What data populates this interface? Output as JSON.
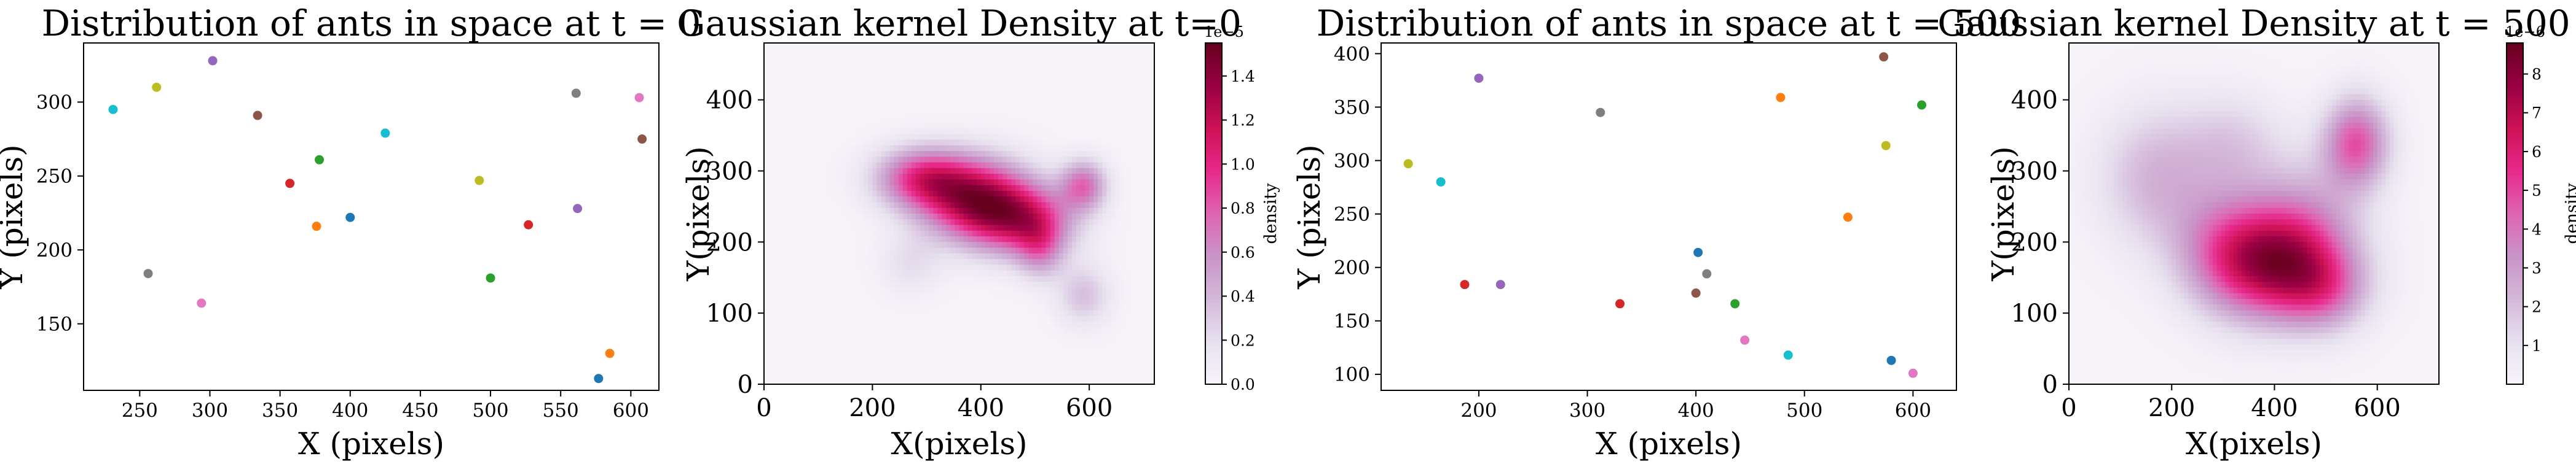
{
  "colors": {
    "palette": [
      "#1f77b4",
      "#ff7f0e",
      "#2ca02c",
      "#d62728",
      "#9467bd",
      "#8c564b",
      "#e377c2",
      "#7f7f7f",
      "#bcbd22",
      "#17becf"
    ],
    "cmap": [
      "#f7f4f9",
      "#e7e1ef",
      "#d4b9da",
      "#c994c7",
      "#df65b0",
      "#e7298a",
      "#ce1256",
      "#980043",
      "#67001f"
    ]
  },
  "chart_data": [
    {
      "type": "scatter",
      "title": "Distribution of ants in space at t = 0",
      "xlabel": "X (pixels)",
      "ylabel": "Y (pixels)",
      "xlim": [
        210,
        620
      ],
      "ylim": [
        105,
        340
      ],
      "xticks": [
        "250",
        "300",
        "350",
        "400",
        "450",
        "500",
        "550",
        "600"
      ],
      "yticks": [
        "150",
        "200",
        "250",
        "300"
      ],
      "points": [
        {
          "x": 231,
          "y": 295,
          "color": "#17becf"
        },
        {
          "x": 262,
          "y": 310,
          "color": "#bcbd22"
        },
        {
          "x": 302,
          "y": 328,
          "color": "#9467bd"
        },
        {
          "x": 334,
          "y": 291,
          "color": "#8c564b"
        },
        {
          "x": 357,
          "y": 245,
          "color": "#d62728"
        },
        {
          "x": 378,
          "y": 261,
          "color": "#2ca02c"
        },
        {
          "x": 376,
          "y": 216,
          "color": "#ff7f0e"
        },
        {
          "x": 400,
          "y": 222,
          "color": "#1f77b4"
        },
        {
          "x": 425,
          "y": 279,
          "color": "#17becf"
        },
        {
          "x": 256,
          "y": 184,
          "color": "#7f7f7f"
        },
        {
          "x": 294,
          "y": 164,
          "color": "#e377c2"
        },
        {
          "x": 492,
          "y": 247,
          "color": "#bcbd22"
        },
        {
          "x": 500,
          "y": 181,
          "color": "#2ca02c"
        },
        {
          "x": 527,
          "y": 217,
          "color": "#d62728"
        },
        {
          "x": 561,
          "y": 306,
          "color": "#7f7f7f"
        },
        {
          "x": 562,
          "y": 228,
          "color": "#9467bd"
        },
        {
          "x": 606,
          "y": 303,
          "color": "#e377c2"
        },
        {
          "x": 608,
          "y": 275,
          "color": "#8c564b"
        },
        {
          "x": 585,
          "y": 130,
          "color": "#ff7f0e"
        },
        {
          "x": 577,
          "y": 113,
          "color": "#1f77b4"
        }
      ]
    },
    {
      "type": "heatmap",
      "title": "Gaussian kernel Density at t=0",
      "xlabel": "X(pixels)",
      "ylabel": "Y(pixels)",
      "xlim": [
        0,
        720
      ],
      "ylim": [
        0,
        480
      ],
      "xticks": [
        "0",
        "200",
        "400",
        "600"
      ],
      "yticks": [
        "0",
        "100",
        "200",
        "300",
        "400"
      ],
      "colorbar": {
        "label": "density",
        "offset_text": "1e−5",
        "max": 1.55,
        "ticks": [
          "0.0",
          "0.2",
          "0.4",
          "0.6",
          "0.8",
          "1.0",
          "1.2",
          "1.4"
        ]
      },
      "peaks": [
        {
          "x": 390,
          "y": 260,
          "sx": 70,
          "sy": 40,
          "w": 1.2
        },
        {
          "x": 290,
          "y": 290,
          "sx": 60,
          "sy": 30,
          "w": 0.85
        },
        {
          "x": 480,
          "y": 230,
          "sx": 65,
          "sy": 35,
          "w": 0.9
        },
        {
          "x": 590,
          "y": 280,
          "sx": 30,
          "sy": 25,
          "w": 0.7
        },
        {
          "x": 510,
          "y": 190,
          "sx": 30,
          "sy": 30,
          "w": 0.45
        },
        {
          "x": 590,
          "y": 125,
          "sx": 35,
          "sy": 30,
          "w": 0.35
        },
        {
          "x": 270,
          "y": 170,
          "sx": 40,
          "sy": 30,
          "w": 0.2
        }
      ]
    },
    {
      "type": "scatter",
      "title": "Distribution of ants in space at t = 500",
      "xlabel": "X (pixels)",
      "ylabel": "Y (pixels)",
      "xlim": [
        110,
        640
      ],
      "ylim": [
        85,
        410
      ],
      "xticks": [
        "200",
        "300",
        "400",
        "500",
        "600"
      ],
      "yticks": [
        "100",
        "150",
        "200",
        "250",
        "300",
        "350",
        "400"
      ],
      "points": [
        {
          "x": 135,
          "y": 297,
          "color": "#bcbd22"
        },
        {
          "x": 165,
          "y": 280,
          "color": "#17becf"
        },
        {
          "x": 200,
          "y": 377,
          "color": "#9467bd"
        },
        {
          "x": 187,
          "y": 184,
          "color": "#d62728"
        },
        {
          "x": 220,
          "y": 184,
          "color": "#9467bd"
        },
        {
          "x": 312,
          "y": 345,
          "color": "#7f7f7f"
        },
        {
          "x": 330,
          "y": 166,
          "color": "#d62728"
        },
        {
          "x": 402,
          "y": 214,
          "color": "#1f77b4"
        },
        {
          "x": 410,
          "y": 194,
          "color": "#7f7f7f"
        },
        {
          "x": 400,
          "y": 176,
          "color": "#8c564b"
        },
        {
          "x": 436,
          "y": 166,
          "color": "#2ca02c"
        },
        {
          "x": 445,
          "y": 132,
          "color": "#e377c2"
        },
        {
          "x": 478,
          "y": 359,
          "color": "#ff7f0e"
        },
        {
          "x": 485,
          "y": 118,
          "color": "#17becf"
        },
        {
          "x": 540,
          "y": 247,
          "color": "#ff7f0e"
        },
        {
          "x": 573,
          "y": 397,
          "color": "#8c564b"
        },
        {
          "x": 575,
          "y": 314,
          "color": "#bcbd22"
        },
        {
          "x": 608,
          "y": 352,
          "color": "#2ca02c"
        },
        {
          "x": 580,
          "y": 113,
          "color": "#1f77b4"
        },
        {
          "x": 600,
          "y": 101,
          "color": "#e377c2"
        }
      ]
    },
    {
      "type": "heatmap",
      "title": "Gaussian kernel Density at t = 500",
      "xlabel": "X(pixels)",
      "ylabel": "Y(pixels)",
      "xlim": [
        0,
        720
      ],
      "ylim": [
        0,
        480
      ],
      "xticks": [
        "0",
        "200",
        "400",
        "600"
      ],
      "yticks": [
        "0",
        "100",
        "200",
        "300",
        "400"
      ],
      "colorbar": {
        "label": "density",
        "offset_text": "1e−6",
        "max": 8.8,
        "ticks": [
          "1",
          "2",
          "3",
          "4",
          "5",
          "6",
          "7",
          "8"
        ]
      },
      "peaks": [
        {
          "x": 410,
          "y": 170,
          "sx": 90,
          "sy": 55,
          "w": 7.0
        },
        {
          "x": 500,
          "y": 130,
          "sx": 60,
          "sy": 40,
          "w": 2.5
        },
        {
          "x": 300,
          "y": 190,
          "sx": 70,
          "sy": 60,
          "w": 2.5
        },
        {
          "x": 560,
          "y": 340,
          "sx": 45,
          "sy": 45,
          "w": 4.6
        },
        {
          "x": 170,
          "y": 290,
          "sx": 80,
          "sy": 70,
          "w": 2.3
        },
        {
          "x": 320,
          "y": 340,
          "sx": 70,
          "sy": 50,
          "w": 1.5
        },
        {
          "x": 460,
          "y": 250,
          "sx": 80,
          "sy": 60,
          "w": 1.6
        }
      ]
    }
  ]
}
